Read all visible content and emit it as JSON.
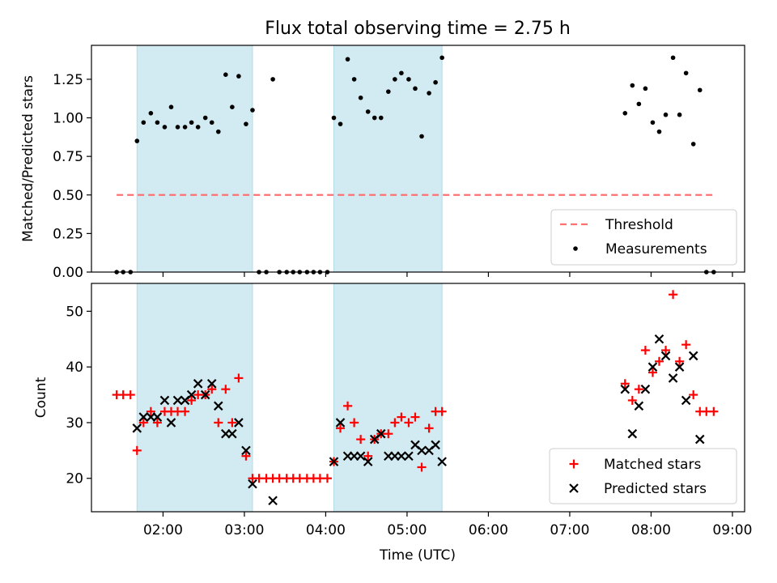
{
  "title": "Flux total observing time = 2.75 h",
  "xlabel": "Time (UTC)",
  "x_ticks": [
    "02:00",
    "03:00",
    "04:00",
    "05:00",
    "06:00",
    "07:00",
    "08:00",
    "09:00"
  ],
  "colors": {
    "threshold": "#ff7070",
    "measurement": "#000000",
    "matched": "#ff0000",
    "predicted": "#000000",
    "band": "#add8e6"
  },
  "chart_data": [
    {
      "type": "scatter",
      "ylabel": "Matched/Predicted stars",
      "x_unit": "hours UTC",
      "xlim": [
        1.12,
        9.15
      ],
      "ylim": [
        0,
        1.47
      ],
      "y_ticks": [
        "0.00",
        "0.25",
        "0.50",
        "0.75",
        "1.00",
        "1.25"
      ],
      "shaded_intervals": [
        [
          1.68,
          3.1
        ],
        [
          4.1,
          5.43
        ]
      ],
      "threshold": {
        "name": "Threshold",
        "y": 0.5,
        "x_range": [
          1.43,
          8.8
        ]
      },
      "legend": {
        "position": "lower right",
        "entries": [
          "Threshold",
          "Measurements"
        ]
      },
      "series": [
        {
          "name": "Measurements",
          "x": [
            1.43,
            1.51,
            1.6,
            1.68,
            1.76,
            1.85,
            1.93,
            2.02,
            2.1,
            2.18,
            2.27,
            2.35,
            2.43,
            2.52,
            2.6,
            2.68,
            2.77,
            2.85,
            2.93,
            3.02,
            3.1,
            3.18,
            3.27,
            3.35,
            3.43,
            3.52,
            3.6,
            3.68,
            3.77,
            3.85,
            3.93,
            4.02,
            4.1,
            4.18,
            4.27,
            4.35,
            4.43,
            4.52,
            4.6,
            4.68,
            4.77,
            4.85,
            4.93,
            5.02,
            5.1,
            5.18,
            5.27,
            5.35,
            5.43,
            7.68,
            7.77,
            7.85,
            7.93,
            8.02,
            8.1,
            8.18,
            8.27,
            8.35,
            8.43,
            8.52,
            8.6,
            8.68,
            8.77
          ],
          "y": [
            0,
            0,
            0,
            0.85,
            0.97,
            1.03,
            0.97,
            0.94,
            1.07,
            0.94,
            0.94,
            0.97,
            0.94,
            1.0,
            0.97,
            0.91,
            1.28,
            1.07,
            1.27,
            0.96,
            1.05,
            0,
            0,
            1.25,
            0,
            0,
            0,
            0,
            0,
            0,
            0,
            0,
            1.0,
            0.96,
            1.38,
            1.25,
            1.13,
            1.04,
            1.0,
            1.0,
            1.17,
            1.25,
            1.29,
            1.25,
            1.19,
            0.88,
            1.16,
            1.23,
            1.39,
            1.03,
            1.21,
            1.09,
            1.19,
            0.97,
            0.91,
            1.02,
            1.39,
            1.02,
            1.29,
            0.83,
            1.18,
            0,
            0
          ]
        }
      ]
    },
    {
      "type": "scatter",
      "ylabel": "Count",
      "x_unit": "hours UTC",
      "xlim": [
        1.12,
        9.15
      ],
      "ylim": [
        14,
        55
      ],
      "y_ticks": [
        "20",
        "30",
        "40",
        "50"
      ],
      "shaded_intervals": [
        [
          1.68,
          3.1
        ],
        [
          4.1,
          5.43
        ]
      ],
      "legend": {
        "position": "lower right",
        "entries": [
          "Matched stars",
          "Predicted stars"
        ]
      },
      "series": [
        {
          "name": "Matched stars",
          "marker": "+",
          "x": [
            1.43,
            1.51,
            1.6,
            1.68,
            1.76,
            1.85,
            1.93,
            2.02,
            2.1,
            2.18,
            2.27,
            2.35,
            2.43,
            2.52,
            2.6,
            2.68,
            2.77,
            2.85,
            2.93,
            3.02,
            3.1,
            3.18,
            3.27,
            3.35,
            3.43,
            3.52,
            3.6,
            3.68,
            3.77,
            3.85,
            3.93,
            4.02,
            4.1,
            4.18,
            4.27,
            4.35,
            4.43,
            4.52,
            4.6,
            4.68,
            4.77,
            4.85,
            4.93,
            5.02,
            5.1,
            5.18,
            5.27,
            5.35,
            5.43,
            7.68,
            7.77,
            7.85,
            7.93,
            8.02,
            8.1,
            8.18,
            8.27,
            8.35,
            8.43,
            8.52,
            8.6,
            8.68,
            8.77
          ],
          "y": [
            35,
            35,
            35,
            25,
            30,
            32,
            30,
            32,
            32,
            32,
            32,
            34,
            35,
            35,
            36,
            30,
            36,
            30,
            38,
            24,
            20,
            20,
            20,
            20,
            20,
            20,
            20,
            20,
            20,
            20,
            20,
            20,
            23,
            29,
            33,
            30,
            27,
            24,
            27,
            28,
            28,
            30,
            31,
            30,
            31,
            22,
            29,
            32,
            32,
            37,
            34,
            36,
            43,
            39,
            41,
            43,
            53,
            41,
            44,
            35,
            32,
            32,
            32
          ]
        },
        {
          "name": "Predicted stars",
          "marker": "x",
          "x": [
            1.68,
            1.76,
            1.85,
            1.93,
            2.02,
            2.1,
            2.18,
            2.27,
            2.35,
            2.43,
            2.52,
            2.6,
            2.68,
            2.77,
            2.85,
            2.93,
            3.02,
            3.1,
            3.35,
            4.1,
            4.18,
            4.27,
            4.35,
            4.43,
            4.52,
            4.6,
            4.68,
            4.77,
            4.85,
            4.93,
            5.02,
            5.1,
            5.18,
            5.27,
            5.35,
            5.43,
            7.68,
            7.77,
            7.85,
            7.93,
            8.02,
            8.1,
            8.18,
            8.27,
            8.35,
            8.43,
            8.52,
            8.6
          ],
          "y": [
            29,
            31,
            31,
            31,
            34,
            30,
            34,
            34,
            35,
            37,
            35,
            37,
            33,
            28,
            28,
            30,
            25,
            19,
            16,
            23,
            30,
            24,
            24,
            24,
            23,
            27,
            28,
            24,
            24,
            24,
            24,
            26,
            25,
            25,
            26,
            23,
            36,
            28,
            33,
            36,
            40,
            45,
            42,
            38,
            40,
            34,
            42,
            27
          ]
        }
      ]
    }
  ]
}
